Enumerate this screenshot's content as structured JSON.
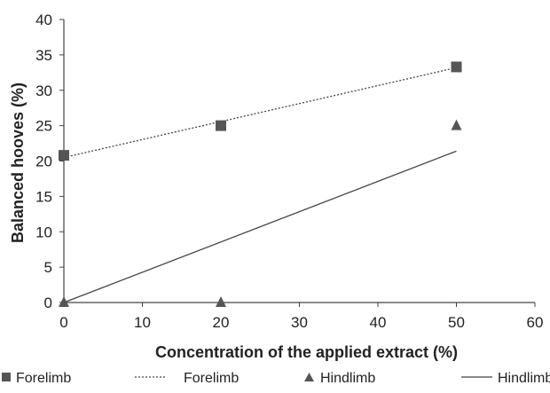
{
  "chart_data": {
    "type": "scatter",
    "xlabel": "Concentration of the applied extract (%)",
    "ylabel": "Balanced hooves (%)",
    "xlim": [
      0,
      60
    ],
    "ylim": [
      0,
      40
    ],
    "xticks": [
      0,
      10,
      20,
      30,
      40,
      50,
      60
    ],
    "yticks": [
      0,
      5,
      10,
      15,
      20,
      25,
      30,
      35,
      40
    ],
    "grid": false,
    "legend_position": "bottom",
    "series": [
      {
        "name": "Forelimb",
        "kind": "markers",
        "marker": "square",
        "x": [
          0,
          20,
          50
        ],
        "y": [
          20.8,
          25,
          33.3
        ],
        "color": "#555555"
      },
      {
        "name": "Hindlimb",
        "kind": "markers",
        "marker": "triangle",
        "x": [
          0,
          20,
          50
        ],
        "y": [
          0,
          0,
          25
        ],
        "color": "#555555"
      }
    ],
    "trendlines": [
      {
        "name": "Forelimb",
        "style": "dotted",
        "x": [
          0,
          50
        ],
        "y": [
          20.5,
          33.2
        ],
        "color": "#444444"
      },
      {
        "name": "Hindlimb",
        "style": "solid",
        "x": [
          0,
          50
        ],
        "y": [
          0,
          21.4
        ],
        "color": "#444444"
      }
    ],
    "legend": [
      {
        "symbol": "square",
        "label": "Forelimb"
      },
      {
        "symbol": "dotted-line",
        "label": "Forelimb"
      },
      {
        "symbol": "triangle",
        "label": "Hindlimb"
      },
      {
        "symbol": "solid-line",
        "label": "Hindlimb"
      }
    ]
  }
}
